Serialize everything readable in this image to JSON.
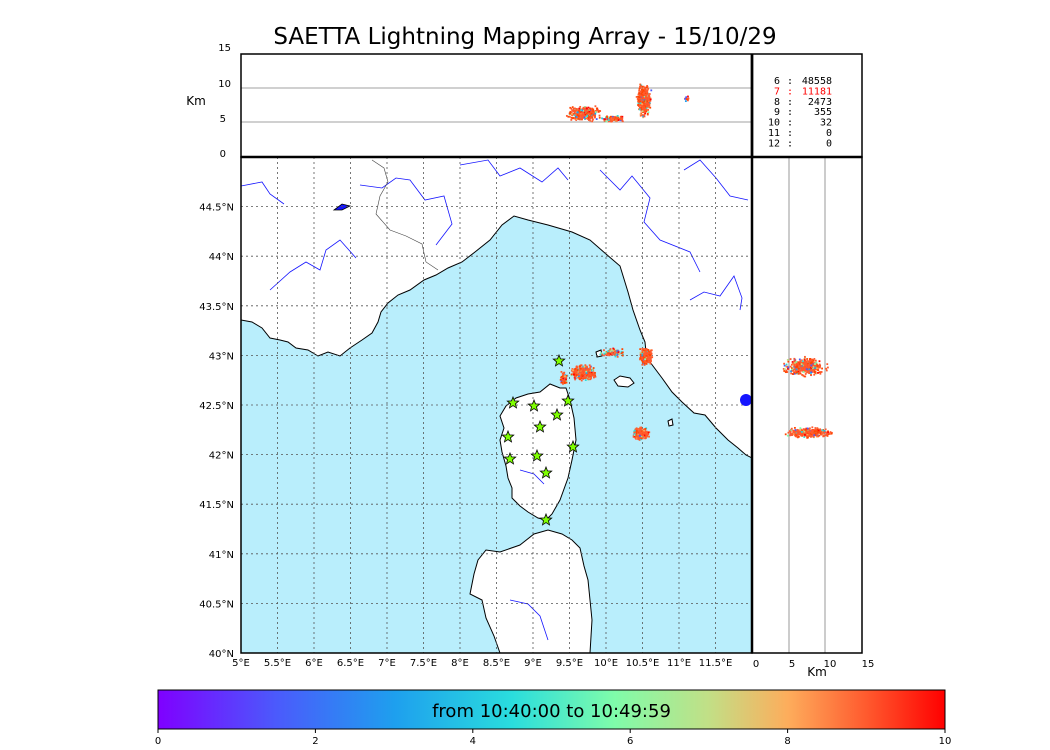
{
  "title": "SAETTA Lightning Mapping Array - 15/10/29",
  "altitude_panel": {
    "unit_label": "Km",
    "ticks": [
      "15",
      "10",
      "5",
      "0"
    ]
  },
  "station_counts": [
    {
      "stations": "6",
      "count": "48558",
      "color": "#000000"
    },
    {
      "stations": "7",
      "count": "11181",
      "color": "#ff0000"
    },
    {
      "stations": "8",
      "count": "2473",
      "color": "#000000"
    },
    {
      "stations": "9",
      "count": "355",
      "color": "#000000"
    },
    {
      "stations": "10",
      "count": "32",
      "color": "#000000"
    },
    {
      "stations": "11",
      "count": "0",
      "color": "#000000"
    },
    {
      "stations": "12",
      "count": "0",
      "color": "#000000"
    }
  ],
  "map": {
    "lon_ticks": [
      "5°E",
      "5.5°E",
      "6°E",
      "6.5°E",
      "7°E",
      "7.5°E",
      "8°E",
      "8.5°E",
      "9°E",
      "9.5°E",
      "10°E",
      "10.5°E",
      "11°E",
      "11.5°E"
    ],
    "lat_ticks": [
      "44.5°N",
      "44°N",
      "43.5°N",
      "43°N",
      "42.5°N",
      "42°N",
      "41.5°N",
      "41°N",
      "40.5°N",
      "40°N"
    ],
    "lon_range": [
      5,
      12
    ],
    "lat_range": [
      40,
      45
    ],
    "sea_color": "#b9eefc",
    "station_color": "#7fff00"
  },
  "side_panel": {
    "ticks": [
      "0",
      "5",
      "10",
      "15"
    ],
    "unit_label": "Km"
  },
  "colorbar": {
    "label": "from 10:40:00 to 10:49:59",
    "ticks": [
      "0",
      "2",
      "4",
      "6",
      "8",
      "10"
    ]
  }
}
